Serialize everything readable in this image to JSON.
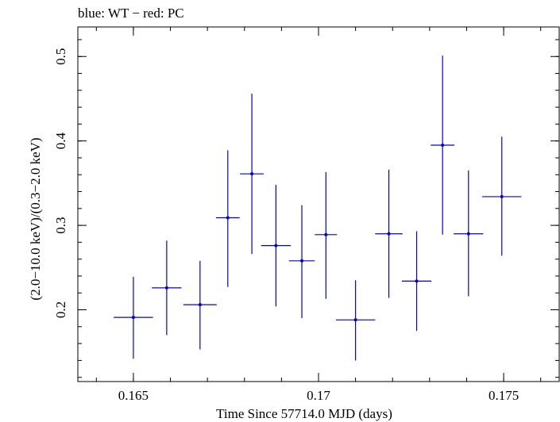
{
  "chart_data": {
    "type": "scatter",
    "title": "blue: WT − red: PC",
    "xlabel": "Time Since 57714.0 MJD (days)",
    "ylabel": "(2.0−10.0 keV)/(0.3−2.0 keV)",
    "xlim": [
      0.1635,
      0.1765
    ],
    "ylim": [
      0.115,
      0.535
    ],
    "x_ticks": [
      0.165,
      0.17,
      0.175
    ],
    "x_tick_labels": [
      "0.165",
      "0.17",
      "0.175"
    ],
    "y_ticks": [
      0.2,
      0.3,
      0.4,
      0.5
    ],
    "y_tick_labels": [
      "0.2",
      "0.3",
      "0.4",
      "0.5"
    ],
    "x_minor_step": 0.001,
    "y_minor_step": 0.02,
    "grid": false,
    "series": [
      {
        "color": "#0000dd",
        "points": [
          {
            "x": 0.165,
            "xerr": 0.00053,
            "y": 0.191,
            "ylo": 0.142,
            "yhi": 0.239
          },
          {
            "x": 0.1659,
            "xerr": 0.0004,
            "y": 0.226,
            "ylo": 0.17,
            "yhi": 0.282
          },
          {
            "x": 0.1668,
            "xerr": 0.00045,
            "y": 0.206,
            "ylo": 0.153,
            "yhi": 0.258
          },
          {
            "x": 0.16755,
            "xerr": 0.00032,
            "y": 0.309,
            "ylo": 0.227,
            "yhi": 0.389
          },
          {
            "x": 0.1682,
            "xerr": 0.00032,
            "y": 0.361,
            "ylo": 0.266,
            "yhi": 0.456
          },
          {
            "x": 0.16885,
            "xerr": 0.0004,
            "y": 0.276,
            "ylo": 0.204,
            "yhi": 0.348
          },
          {
            "x": 0.16955,
            "xerr": 0.00035,
            "y": 0.258,
            "ylo": 0.19,
            "yhi": 0.324
          },
          {
            "x": 0.1702,
            "xerr": 0.0003,
            "y": 0.289,
            "ylo": 0.213,
            "yhi": 0.363
          },
          {
            "x": 0.171,
            "xerr": 0.00053,
            "y": 0.188,
            "ylo": 0.14,
            "yhi": 0.235
          },
          {
            "x": 0.1719,
            "xerr": 0.00037,
            "y": 0.29,
            "ylo": 0.214,
            "yhi": 0.366
          },
          {
            "x": 0.17265,
            "xerr": 0.0004,
            "y": 0.234,
            "ylo": 0.175,
            "yhi": 0.293
          },
          {
            "x": 0.17335,
            "xerr": 0.00032,
            "y": 0.395,
            "ylo": 0.289,
            "yhi": 0.501
          },
          {
            "x": 0.17405,
            "xerr": 0.0004,
            "y": 0.29,
            "ylo": 0.216,
            "yhi": 0.365
          },
          {
            "x": 0.17495,
            "xerr": 0.00053,
            "y": 0.334,
            "ylo": 0.264,
            "yhi": 0.405
          }
        ]
      }
    ]
  }
}
